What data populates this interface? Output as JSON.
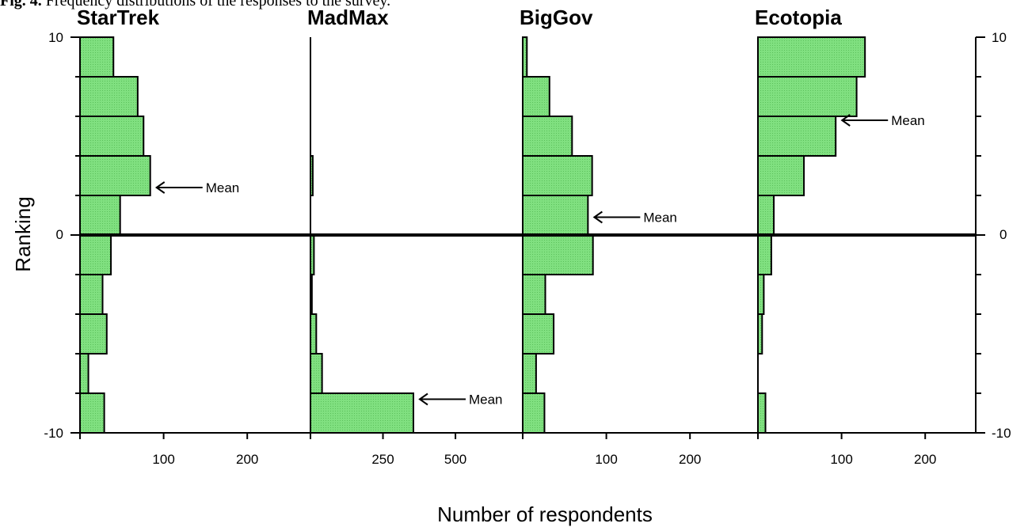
{
  "caption": {
    "prefix": "Fig. 4.",
    "text": "Frequency distributions of the responses to the survey."
  },
  "colors": {
    "bar_fill": "#80e080",
    "bar_stroke": "#000000",
    "axis": "#000000"
  },
  "chart_data": {
    "type": "bar",
    "orientation": "horizontal",
    "xlabel": "Number of respondents",
    "ylabel": "Ranking",
    "ylim": [
      -10,
      10
    ],
    "y_ticks": [
      "10",
      "0",
      "-10"
    ],
    "y_ticks_right": [
      "10",
      "0",
      "-10"
    ],
    "bin_edges": [
      -10,
      -8,
      -6,
      -4,
      -2,
      0,
      2,
      4,
      6,
      8,
      10
    ],
    "annotation_label": "Mean",
    "panels": [
      {
        "title": "StarTrek",
        "xlim": [
          0,
          250
        ],
        "x_ticks": [
          100,
          200
        ],
        "x_tick_labels": [
          "100",
          "200"
        ],
        "values": [
          29,
          10,
          32,
          27,
          37,
          48,
          84,
          76,
          69,
          40
        ],
        "mean": 2.4
      },
      {
        "title": "MadMax",
        "xlim": [
          0,
          650
        ],
        "x_ticks": [
          250,
          500
        ],
        "x_tick_labels": [
          "250",
          "500"
        ],
        "values": [
          355,
          40,
          20,
          5,
          12,
          0,
          8,
          0,
          0,
          0
        ],
        "mean": -8.3
      },
      {
        "title": "BigGov",
        "xlim": [
          0,
          250
        ],
        "x_ticks": [
          100,
          200
        ],
        "x_tick_labels": [
          "100",
          "200"
        ],
        "values": [
          26,
          16,
          37,
          27,
          84,
          78,
          83,
          59,
          32,
          5
        ],
        "mean": 0.9
      },
      {
        "title": "Ecotopia",
        "xlim": [
          0,
          250
        ],
        "x_ticks": [
          100,
          200
        ],
        "x_tick_labels": [
          "100",
          "200"
        ],
        "values": [
          9,
          0,
          5,
          7,
          16,
          19,
          55,
          93,
          118,
          128
        ],
        "mean": 5.8
      }
    ]
  }
}
